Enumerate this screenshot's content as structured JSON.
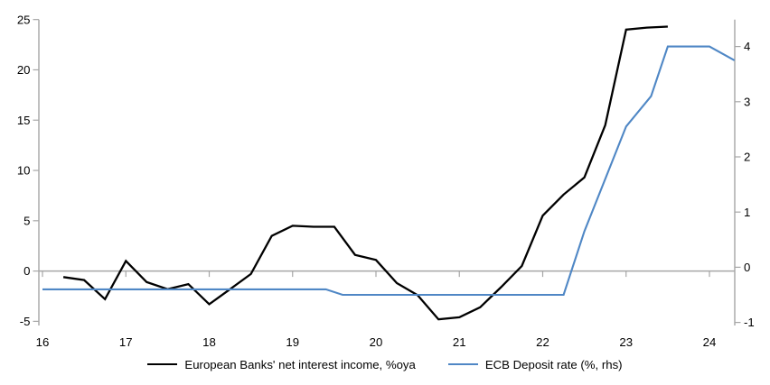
{
  "chart_data": {
    "type": "line",
    "title": "",
    "x_axis": {
      "ticks": [
        16,
        17,
        18,
        19,
        20,
        21,
        22,
        23,
        24
      ],
      "min": 15.95,
      "max": 24.3
    },
    "left_axis": {
      "ticks": [
        -5,
        0,
        5,
        10,
        15,
        20,
        25
      ],
      "min": -5,
      "max": 25
    },
    "right_axis": {
      "ticks": [
        -1,
        0,
        1,
        2,
        3,
        4
      ],
      "min": -1,
      "max": 4.47
    },
    "grid": "zero-line-only",
    "legend_position": "bottom",
    "series": [
      {
        "id": "nii",
        "name": "European Banks' net interest income, %oya",
        "axis": "left",
        "color": "#000000",
        "points": [
          [
            16.25,
            -0.6
          ],
          [
            16.5,
            -0.9
          ],
          [
            16.75,
            -2.8
          ],
          [
            17.0,
            1.0
          ],
          [
            17.25,
            -1.1
          ],
          [
            17.5,
            -1.8
          ],
          [
            17.75,
            -1.3
          ],
          [
            18.0,
            -3.3
          ],
          [
            18.25,
            -1.8
          ],
          [
            18.5,
            -0.3
          ],
          [
            18.75,
            3.5
          ],
          [
            19.0,
            4.5
          ],
          [
            19.25,
            4.4
          ],
          [
            19.5,
            4.4
          ],
          [
            19.75,
            1.6
          ],
          [
            20.0,
            1.1
          ],
          [
            20.25,
            -1.2
          ],
          [
            20.5,
            -2.4
          ],
          [
            20.75,
            -4.8
          ],
          [
            21.0,
            -4.6
          ],
          [
            21.25,
            -3.6
          ],
          [
            21.5,
            -1.6
          ],
          [
            21.75,
            0.5
          ],
          [
            22.0,
            5.5
          ],
          [
            22.25,
            7.6
          ],
          [
            22.5,
            9.3
          ],
          [
            22.75,
            14.5
          ],
          [
            23.0,
            24.0
          ],
          [
            23.25,
            24.2
          ],
          [
            23.5,
            24.3
          ]
        ]
      },
      {
        "id": "ecb-deposit-rate",
        "name": "ECB Deposit rate (%, rhs)",
        "axis": "right",
        "color": "#4f87c5",
        "points": [
          [
            16.0,
            -0.4
          ],
          [
            19.4,
            -0.4
          ],
          [
            19.6,
            -0.5
          ],
          [
            22.25,
            -0.5
          ],
          [
            22.5,
            0.65
          ],
          [
            22.75,
            1.6
          ],
          [
            23.0,
            2.55
          ],
          [
            23.3,
            3.1
          ],
          [
            23.5,
            4.0
          ],
          [
            24.0,
            4.0
          ],
          [
            24.3,
            3.75
          ]
        ]
      }
    ],
    "colors": {
      "axis": "#a6a6a6",
      "zero_line": "#a6a6a6",
      "text": "#000000",
      "background": "#ffffff"
    }
  }
}
